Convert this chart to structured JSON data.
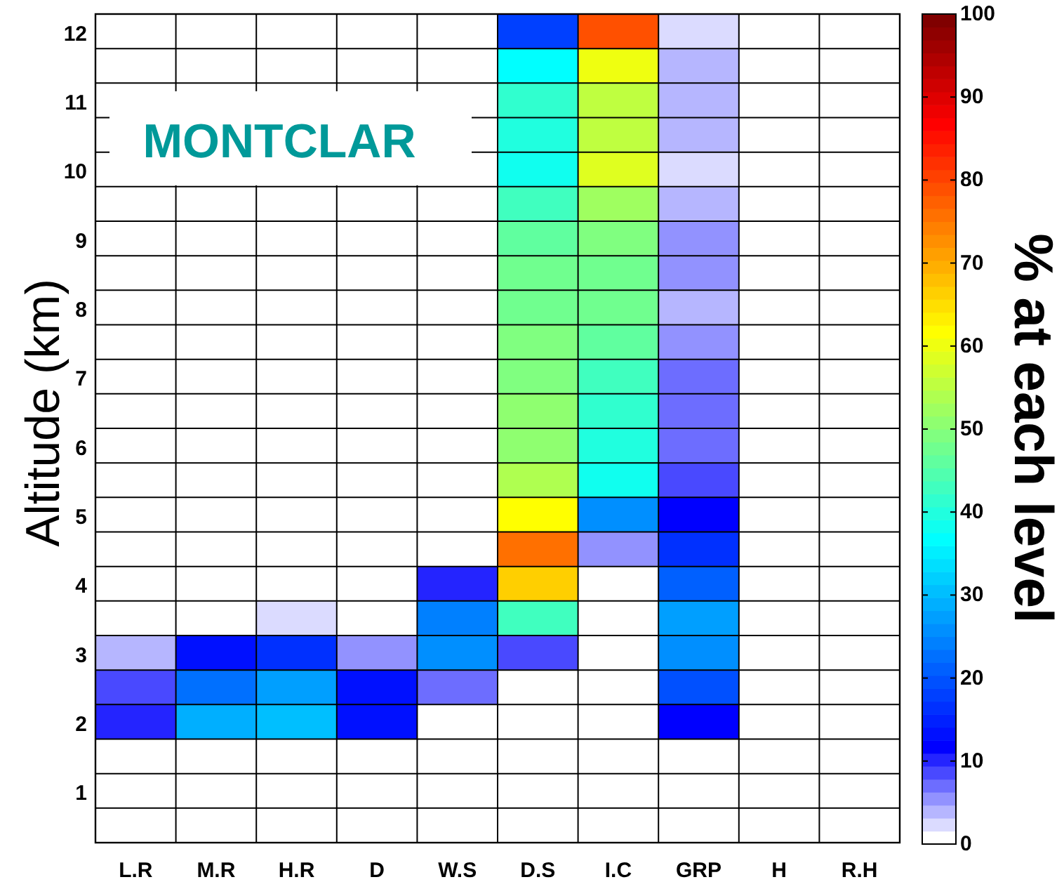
{
  "chart_data": {
    "type": "heatmap",
    "title": "MONTCLAR",
    "ylabel": "Altitude (km)",
    "clabel": "% at each level",
    "categories": [
      "L.R",
      "M.R",
      "H.R",
      "D",
      "W.S",
      "D.S",
      "I.C",
      "GRP",
      "H",
      "R.H"
    ],
    "y_categories": [
      "12",
      null,
      "11",
      null,
      "10",
      null,
      "9",
      null,
      "8",
      null,
      "7",
      null,
      "6",
      null,
      "5",
      null,
      "4",
      null,
      "3",
      null,
      "2",
      null,
      "1",
      null
    ],
    "cells": [
      [
        0,
        0,
        0,
        0,
        0,
        18,
        79,
        2,
        0,
        0
      ],
      [
        0,
        0,
        0,
        0,
        0,
        37,
        60,
        4,
        0,
        0
      ],
      [
        0,
        0,
        0,
        0,
        0,
        41,
        55,
        4,
        0,
        0
      ],
      [
        0,
        0,
        0,
        0,
        0,
        40,
        55,
        4,
        0,
        0
      ],
      [
        0,
        0,
        0,
        0,
        0,
        38,
        59,
        2,
        0,
        0
      ],
      [
        0,
        0,
        0,
        0,
        0,
        43,
        52,
        4,
        0,
        0
      ],
      [
        0,
        0,
        0,
        0,
        0,
        46,
        49,
        5,
        0,
        0
      ],
      [
        0,
        0,
        0,
        0,
        0,
        48,
        48,
        5,
        0,
        0
      ],
      [
        0,
        0,
        0,
        0,
        0,
        48,
        48,
        4,
        0,
        0
      ],
      [
        0,
        0,
        0,
        0,
        0,
        49,
        46,
        5,
        0,
        0
      ],
      [
        0,
        0,
        0,
        0,
        0,
        49,
        43,
        7,
        0,
        0
      ],
      [
        0,
        0,
        0,
        0,
        0,
        51,
        41,
        7,
        0,
        0
      ],
      [
        0,
        0,
        0,
        0,
        0,
        51,
        40,
        7,
        0,
        0
      ],
      [
        0,
        0,
        0,
        0,
        0,
        54,
        38,
        9,
        0,
        0
      ],
      [
        0,
        0,
        0,
        0,
        0,
        62,
        26,
        12,
        0,
        0
      ],
      [
        0,
        0,
        0,
        0,
        0,
        76,
        5,
        16,
        0,
        0
      ],
      [
        0,
        0,
        0,
        0,
        10,
        66,
        0,
        21,
        0,
        0
      ],
      [
        0,
        0,
        2,
        0,
        24,
        43,
        0,
        27,
        0,
        0
      ],
      [
        4,
        13,
        16,
        5,
        26,
        9,
        0,
        26,
        0,
        0
      ],
      [
        9,
        23,
        27,
        13,
        7,
        0,
        0,
        20,
        0,
        0
      ],
      [
        10,
        29,
        30,
        13,
        0,
        0,
        0,
        12,
        0,
        0
      ],
      [
        0,
        0,
        0,
        0,
        0,
        0,
        0,
        0,
        0,
        0
      ],
      [
        0,
        0,
        0,
        0,
        0,
        0,
        0,
        0,
        0,
        0
      ],
      [
        0,
        0,
        0,
        0,
        0,
        0,
        0,
        0,
        0,
        0
      ]
    ],
    "clim": [
      0,
      100
    ],
    "cticks": [
      0,
      10,
      20,
      30,
      40,
      50,
      60,
      70,
      80,
      90,
      100
    ],
    "grid": true
  }
}
